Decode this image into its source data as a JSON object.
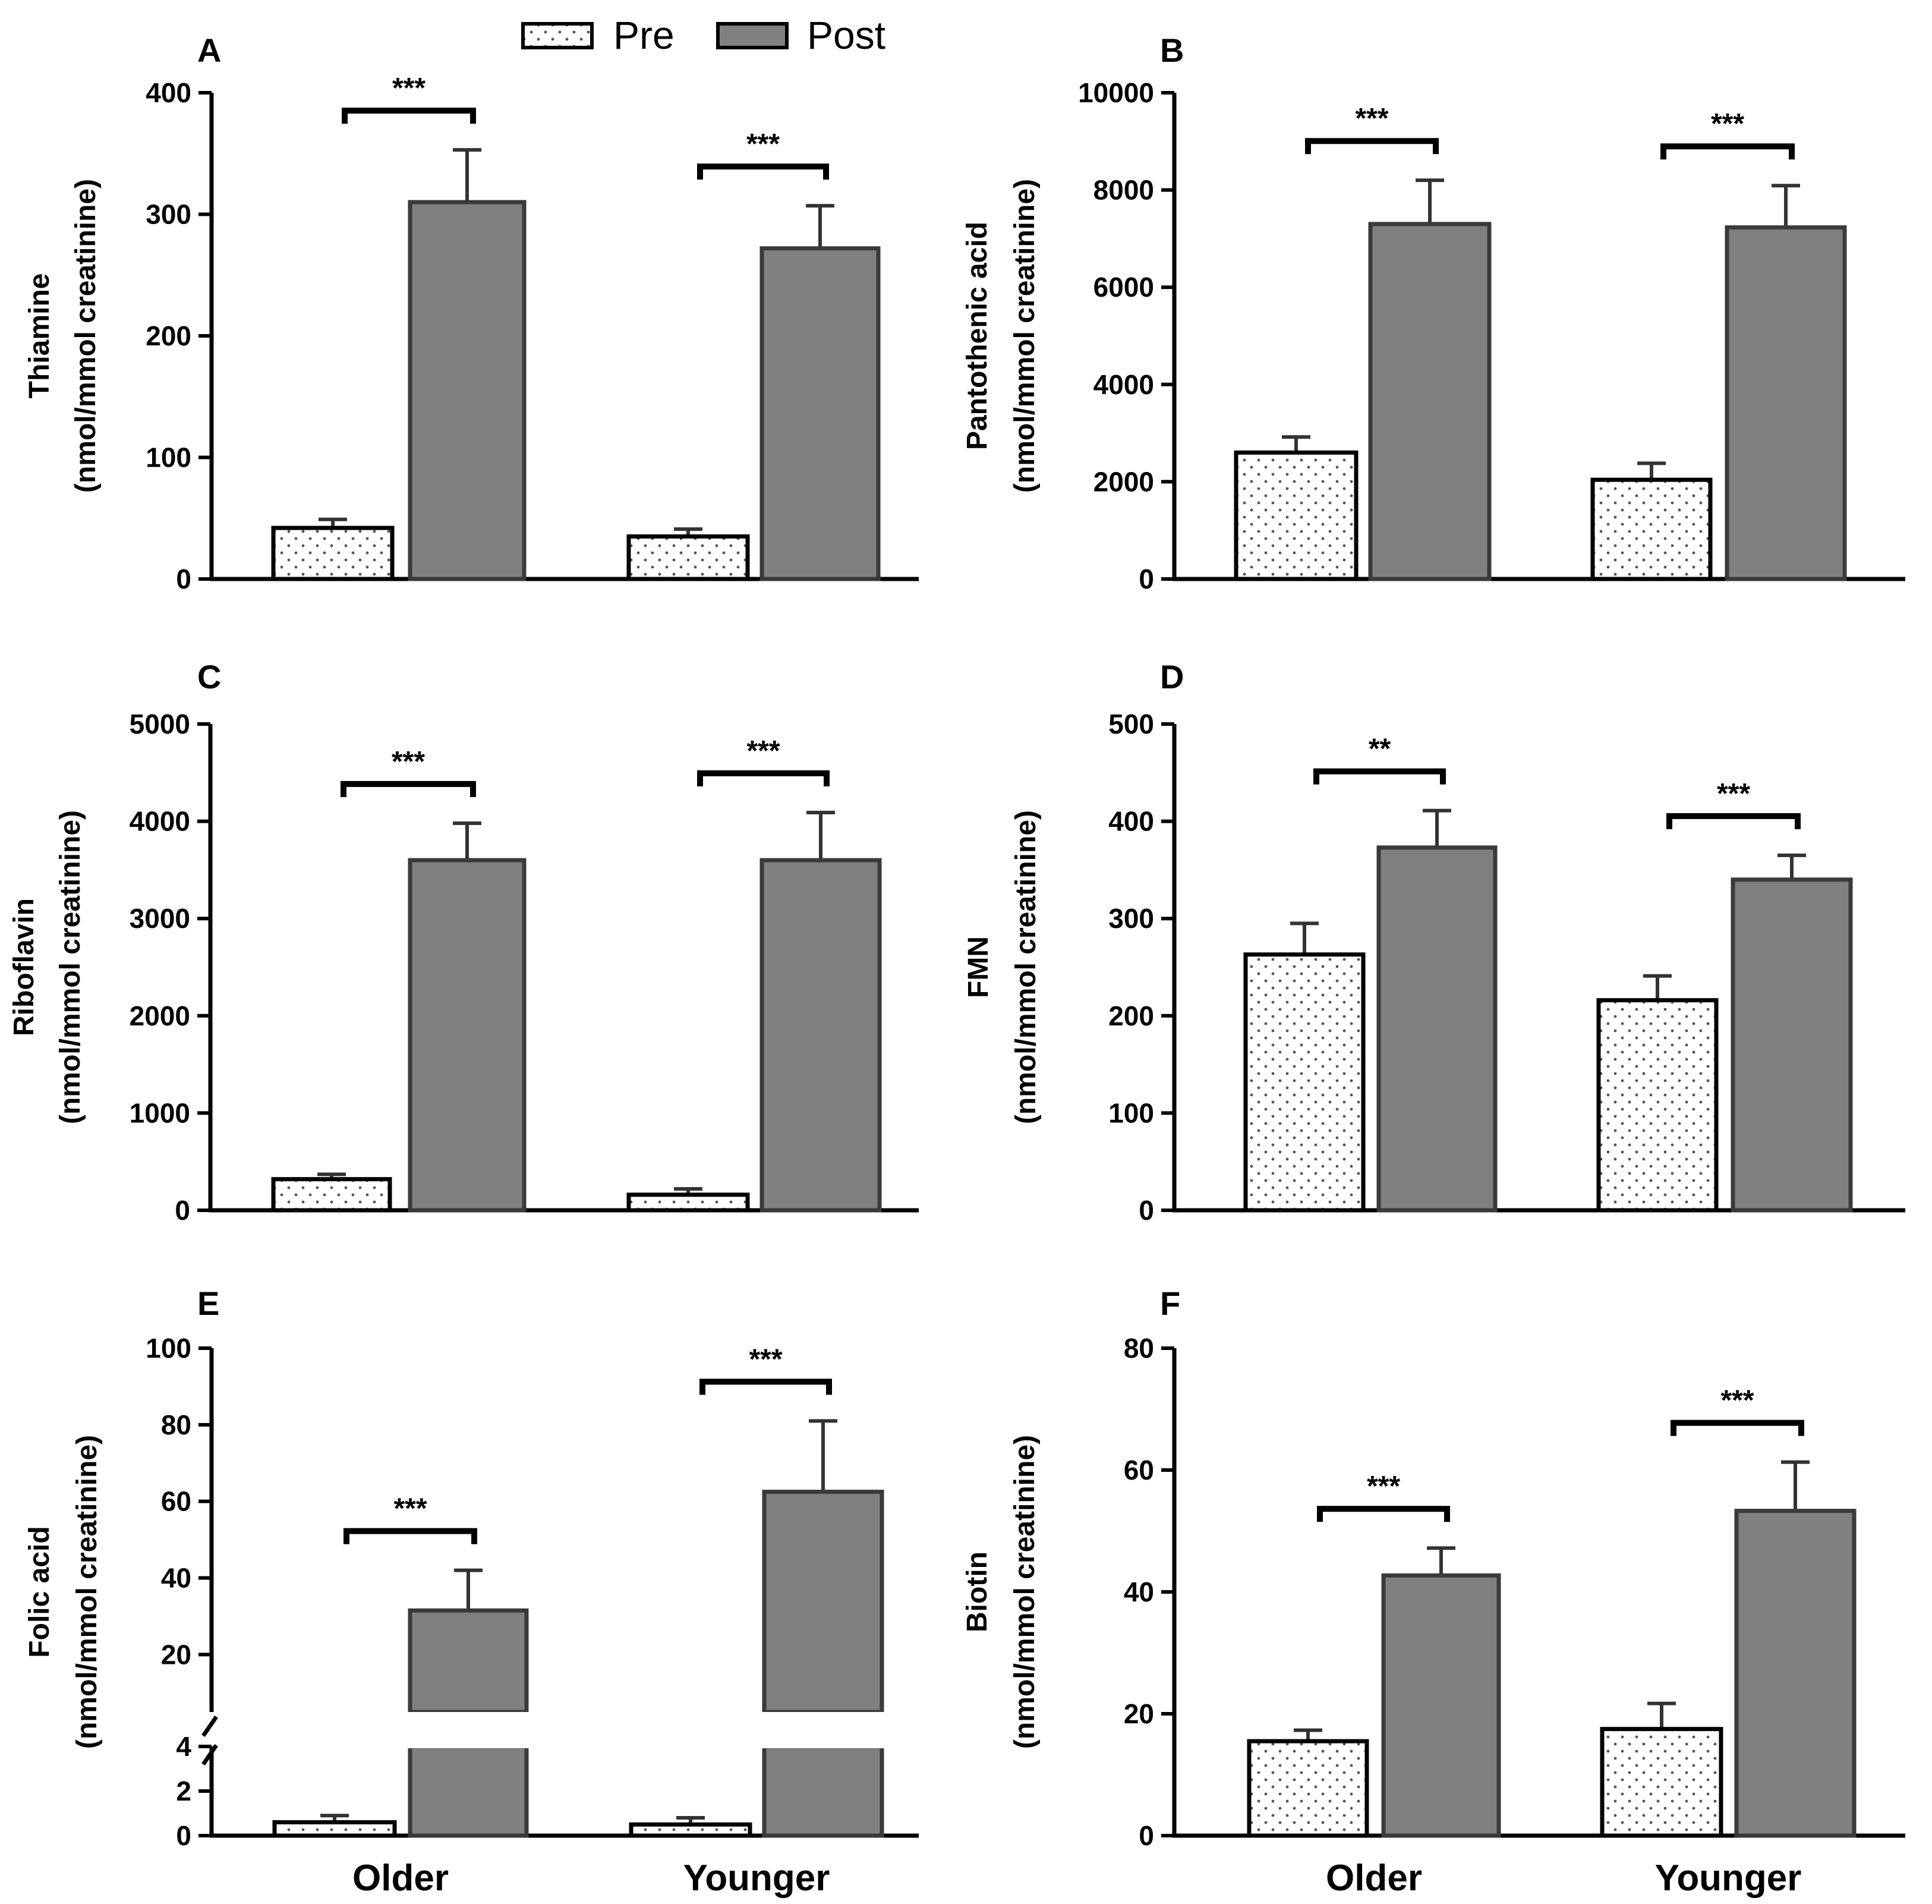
{
  "legend": [
    {
      "label": "Pre",
      "style": "dotted",
      "fill": "#ffffff"
    },
    {
      "label": "Post",
      "style": "solid",
      "fill": "#808080"
    }
  ],
  "colors": {
    "pre": "#ffffff",
    "post": "#808080",
    "axis": "#000000",
    "pre_dot": "#555555"
  },
  "chart_data": [
    {
      "panel": "A",
      "type": "bar",
      "ylabel_line1": "Thiamine",
      "ylabel_line2": "(nmol/mmol creatinine)",
      "ylim": [
        0,
        400
      ],
      "yticks": [
        0,
        100,
        200,
        300,
        400
      ],
      "categories": [
        "Older",
        "Younger"
      ],
      "show_categories": false,
      "series": [
        {
          "name": "Pre",
          "values": [
            42,
            35
          ],
          "errors": [
            7,
            6
          ]
        },
        {
          "name": "Post",
          "values": [
            310,
            272
          ],
          "errors": [
            43,
            35
          ]
        }
      ],
      "significance": [
        "***",
        "***"
      ]
    },
    {
      "panel": "B",
      "type": "bar",
      "ylabel_line1": "Pantothenic acid",
      "ylabel_line2": "(nmol/mmol creatinine)",
      "ylim": [
        0,
        10000
      ],
      "yticks": [
        0,
        2000,
        4000,
        6000,
        8000,
        10000
      ],
      "categories": [
        "Older",
        "Younger"
      ],
      "show_categories": false,
      "series": [
        {
          "name": "Pre",
          "values": [
            2600,
            2040
          ],
          "errors": [
            320,
            340
          ]
        },
        {
          "name": "Post",
          "values": [
            7300,
            7230
          ],
          "errors": [
            900,
            860
          ]
        }
      ],
      "significance": [
        "***",
        "***"
      ]
    },
    {
      "panel": "C",
      "type": "bar",
      "ylabel_line1": "Riboflavin",
      "ylabel_line2": "(nmol/mmol creatinine)",
      "ylim": [
        0,
        5000
      ],
      "yticks": [
        0,
        1000,
        2000,
        3000,
        4000,
        5000
      ],
      "categories": [
        "Older",
        "Younger"
      ],
      "show_categories": false,
      "series": [
        {
          "name": "Pre",
          "values": [
            320,
            160
          ],
          "errors": [
            50,
            60
          ]
        },
        {
          "name": "Post",
          "values": [
            3600,
            3600
          ],
          "errors": [
            380,
            490
          ]
        }
      ],
      "significance": [
        "***",
        "***"
      ]
    },
    {
      "panel": "D",
      "type": "bar",
      "ylabel_line1": "FMN",
      "ylabel_line2": "(nmol/mmol creatinine)",
      "ylim": [
        0,
        500
      ],
      "yticks": [
        0,
        100,
        200,
        300,
        400,
        500
      ],
      "categories": [
        "Older",
        "Younger"
      ],
      "show_categories": false,
      "series": [
        {
          "name": "Pre",
          "values": [
            263,
            216
          ],
          "errors": [
            32,
            25
          ]
        },
        {
          "name": "Post",
          "values": [
            373,
            340
          ],
          "errors": [
            38,
            25
          ]
        }
      ],
      "significance": [
        "**",
        "***"
      ]
    },
    {
      "panel": "E",
      "type": "bar",
      "broken_axis": true,
      "ylabel_line1": "Folic acid",
      "ylabel_line2": "(nmol/mmol creatinine)",
      "ylim_low": [
        0,
        4
      ],
      "yticks_low": [
        0,
        2,
        4
      ],
      "ylim_high": [
        5,
        100
      ],
      "yticks_high": [
        20,
        40,
        60,
        80,
        100
      ],
      "categories": [
        "Older",
        "Younger"
      ],
      "show_categories": true,
      "series": [
        {
          "name": "Pre",
          "values": [
            0.6,
            0.5
          ],
          "errors": [
            0.3,
            0.3
          ]
        },
        {
          "name": "Post",
          "values": [
            31.5,
            62.5
          ],
          "errors": [
            10.5,
            18.5
          ]
        }
      ],
      "significance": [
        "***",
        "***"
      ]
    },
    {
      "panel": "F",
      "type": "bar",
      "ylabel_line1": "Biotin",
      "ylabel_line2": "(nmol/mmol creatinine)",
      "ylim": [
        0,
        80
      ],
      "yticks": [
        0,
        20,
        40,
        60,
        80
      ],
      "categories": [
        "Older",
        "Younger"
      ],
      "show_categories": true,
      "series": [
        {
          "name": "Pre",
          "values": [
            15.5,
            17.5
          ],
          "errors": [
            1.8,
            4.2
          ]
        },
        {
          "name": "Post",
          "values": [
            42.7,
            53.3
          ],
          "errors": [
            4.5,
            8.0
          ]
        }
      ],
      "significance": [
        "***",
        "***"
      ]
    }
  ]
}
